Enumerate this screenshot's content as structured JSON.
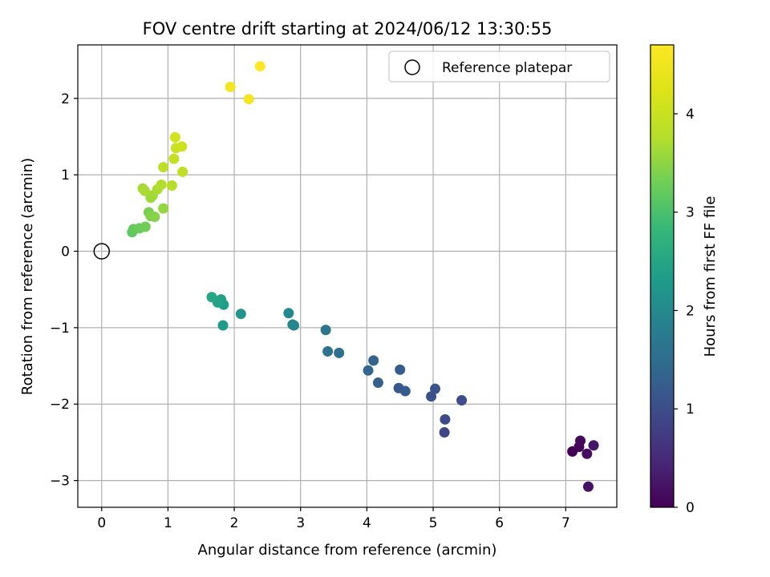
{
  "chart_data": {
    "type": "scatter",
    "title": "FOV centre drift starting at 2024/06/12 13:30:55",
    "xlabel": "Angular distance from reference (arcmin)",
    "ylabel": "Rotation from reference (arcmin)",
    "xlim": [
      -0.36,
      7.77
    ],
    "ylim": [
      -3.35,
      2.7
    ],
    "xticks": [
      0,
      1,
      2,
      3,
      4,
      5,
      6,
      7
    ],
    "yticks": [
      -3,
      -2,
      -1,
      0,
      1,
      2
    ],
    "grid": true,
    "legend": {
      "position": "top-right",
      "entries": [
        "Reference platepar"
      ]
    },
    "reference_point": {
      "x": 0,
      "y": 0,
      "label": "Reference platepar",
      "marker": "open-circle"
    },
    "colorbar": {
      "label": "Hours from first FF file",
      "colormap": "viridis",
      "range": [
        0,
        4.7
      ],
      "ticks": [
        0,
        1,
        2,
        3,
        4
      ]
    },
    "series": [
      {
        "values": [
          {
            "x": 7.1,
            "y": -2.62,
            "c": 0.0
          },
          {
            "x": 7.2,
            "y": -2.56,
            "c": 0.05
          },
          {
            "x": 7.22,
            "y": -2.48,
            "c": 0.1
          },
          {
            "x": 7.32,
            "y": -2.65,
            "c": 0.15
          },
          {
            "x": 7.34,
            "y": -3.08,
            "c": 0.2
          },
          {
            "x": 7.42,
            "y": -2.54,
            "c": 0.25
          },
          {
            "x": 5.17,
            "y": -2.37,
            "c": 0.9
          },
          {
            "x": 5.18,
            "y": -2.2,
            "c": 0.95
          },
          {
            "x": 5.43,
            "y": -1.95,
            "c": 1.0
          },
          {
            "x": 4.97,
            "y": -1.9,
            "c": 1.05
          },
          {
            "x": 5.03,
            "y": -1.8,
            "c": 1.1
          },
          {
            "x": 4.48,
            "y": -1.79,
            "c": 1.15
          },
          {
            "x": 4.58,
            "y": -1.83,
            "c": 1.2
          },
          {
            "x": 4.5,
            "y": -1.55,
            "c": 1.25
          },
          {
            "x": 4.17,
            "y": -1.72,
            "c": 1.3
          },
          {
            "x": 4.1,
            "y": -1.43,
            "c": 1.35
          },
          {
            "x": 4.02,
            "y": -1.56,
            "c": 1.4
          },
          {
            "x": 3.58,
            "y": -1.33,
            "c": 1.55
          },
          {
            "x": 3.41,
            "y": -1.31,
            "c": 1.6
          },
          {
            "x": 3.38,
            "y": -1.03,
            "c": 1.65
          },
          {
            "x": 2.88,
            "y": -0.96,
            "c": 1.9
          },
          {
            "x": 2.9,
            "y": -0.97,
            "c": 1.95
          },
          {
            "x": 2.82,
            "y": -0.81,
            "c": 2.0
          },
          {
            "x": 2.1,
            "y": -0.82,
            "c": 2.2
          },
          {
            "x": 1.83,
            "y": -0.97,
            "c": 2.3
          },
          {
            "x": 1.84,
            "y": -0.7,
            "c": 2.35
          },
          {
            "x": 1.8,
            "y": -0.63,
            "c": 2.4
          },
          {
            "x": 1.75,
            "y": -0.67,
            "c": 2.45
          },
          {
            "x": 1.66,
            "y": -0.6,
            "c": 2.5
          },
          {
            "x": 0.46,
            "y": 0.25,
            "c": 3.15
          },
          {
            "x": 0.48,
            "y": 0.29,
            "c": 3.2
          },
          {
            "x": 0.57,
            "y": 0.3,
            "c": 3.25
          },
          {
            "x": 0.66,
            "y": 0.32,
            "c": 3.3
          },
          {
            "x": 0.71,
            "y": 0.51,
            "c": 3.35
          },
          {
            "x": 0.74,
            "y": 0.46,
            "c": 3.4
          },
          {
            "x": 0.8,
            "y": 0.45,
            "c": 3.45
          },
          {
            "x": 0.93,
            "y": 0.56,
            "c": 3.55
          },
          {
            "x": 0.74,
            "y": 0.7,
            "c": 3.6
          },
          {
            "x": 0.77,
            "y": 0.73,
            "c": 3.62
          },
          {
            "x": 0.62,
            "y": 0.82,
            "c": 3.65
          },
          {
            "x": 0.65,
            "y": 0.79,
            "c": 3.68
          },
          {
            "x": 0.84,
            "y": 0.81,
            "c": 3.7
          },
          {
            "x": 0.9,
            "y": 0.87,
            "c": 3.75
          },
          {
            "x": 1.06,
            "y": 0.86,
            "c": 3.8
          },
          {
            "x": 0.93,
            "y": 1.1,
            "c": 3.85
          },
          {
            "x": 1.22,
            "y": 1.04,
            "c": 3.9
          },
          {
            "x": 1.09,
            "y": 1.21,
            "c": 3.95
          },
          {
            "x": 1.12,
            "y": 1.35,
            "c": 4.0
          },
          {
            "x": 1.21,
            "y": 1.37,
            "c": 4.05
          },
          {
            "x": 1.11,
            "y": 1.49,
            "c": 4.1
          },
          {
            "x": 1.94,
            "y": 2.15,
            "c": 4.55
          },
          {
            "x": 2.22,
            "y": 1.99,
            "c": 4.6
          },
          {
            "x": 2.39,
            "y": 2.42,
            "c": 4.7
          }
        ]
      }
    ]
  }
}
